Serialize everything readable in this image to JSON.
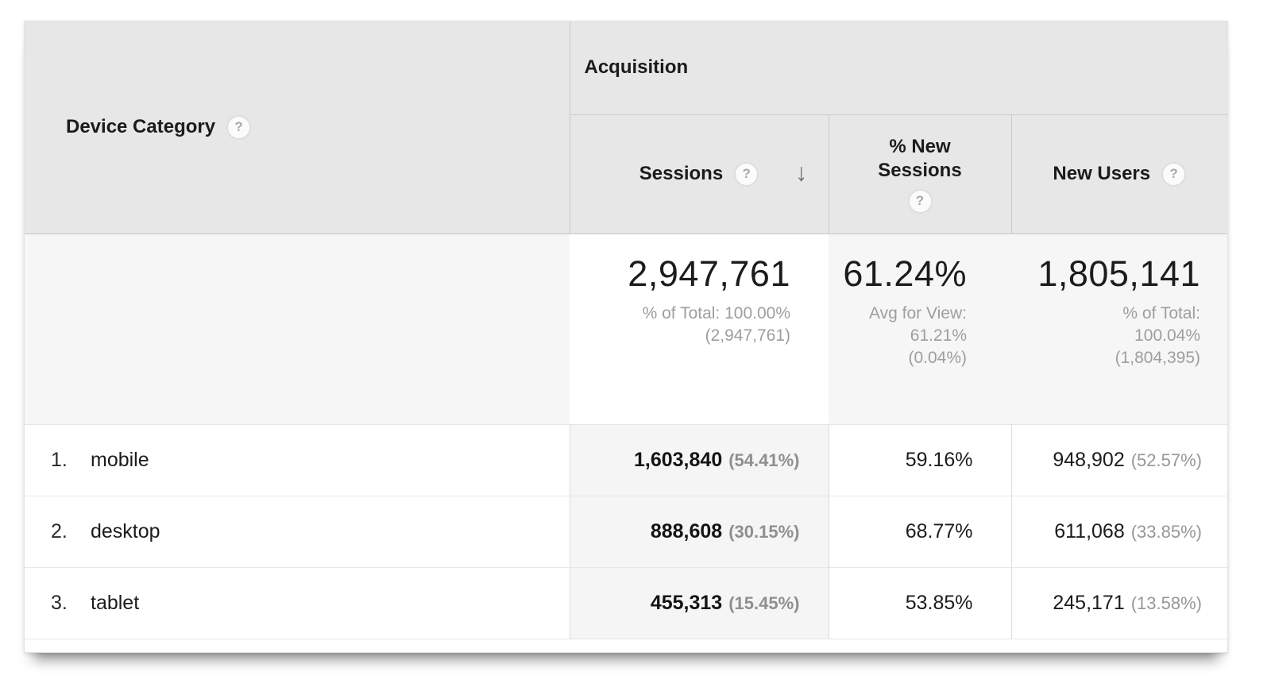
{
  "table": {
    "dimension_header": {
      "label": "Device Category"
    },
    "group_header": {
      "label": "Acquisition"
    },
    "columns": [
      {
        "label": "Sessions",
        "sorted": "descending"
      },
      {
        "label": "% New Sessions"
      },
      {
        "label": "New Users"
      }
    ],
    "summary": {
      "sessions": {
        "value": "2,947,761",
        "sub": [
          "% of Total: 100.00%",
          "(2,947,761)"
        ]
      },
      "new_sessions": {
        "value": "61.24%",
        "sub": [
          "Avg for View:",
          "61.21%",
          "(0.04%)"
        ]
      },
      "new_users": {
        "value": "1,805,141",
        "sub": [
          "% of Total:",
          "100.04%",
          "(1,804,395)"
        ]
      }
    },
    "rows": [
      {
        "rank": "1.",
        "label": "mobile",
        "sessions": "1,603,840",
        "sessions_pct": "(54.41%)",
        "new_sessions_pct": "59.16%",
        "new_users": "948,902",
        "new_users_pct": "(52.57%)"
      },
      {
        "rank": "2.",
        "label": "desktop",
        "sessions": "888,608",
        "sessions_pct": "(30.15%)",
        "new_sessions_pct": "68.77%",
        "new_users": "611,068",
        "new_users_pct": "(33.85%)"
      },
      {
        "rank": "3.",
        "label": "tablet",
        "sessions": "455,313",
        "sessions_pct": "(15.45%)",
        "new_sessions_pct": "53.85%",
        "new_users": "245,171",
        "new_users_pct": "(13.58%)"
      }
    ]
  },
  "icons": {
    "help": "?",
    "sort_desc": "↓"
  },
  "colors": {
    "header_bg": "#e7e7e7",
    "highlight_column_bg": "#f5f5f5",
    "summary_bg": "#f6f6f6",
    "text": "#1c1c1c",
    "muted_text": "#9e9e9e",
    "border": "#c9c9c9"
  }
}
